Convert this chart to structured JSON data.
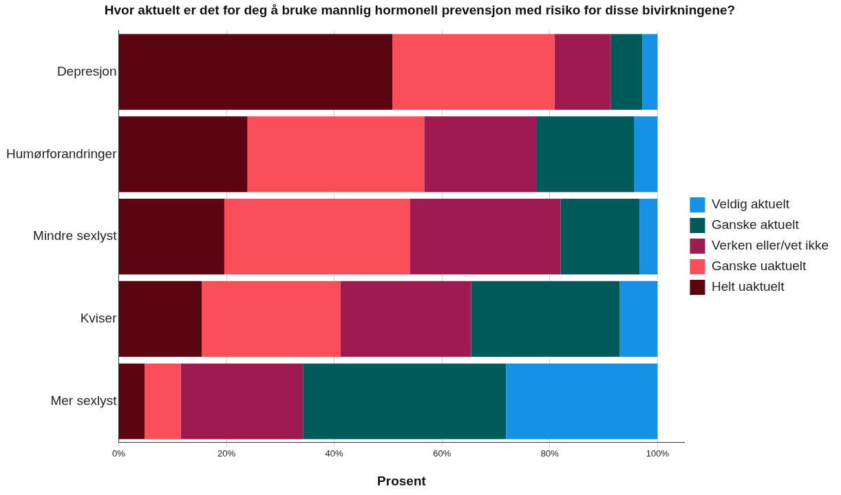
{
  "chart_data": {
    "type": "bar",
    "orientation": "horizontal",
    "stacked": true,
    "title": "Hvor aktuelt er det for deg å bruke mannlig hormonell prevensjon med risiko for disse bivirkningene?",
    "xlabel": "Prosent",
    "categories": [
      "Depresjon",
      "Humørforandringer",
      "Mindre sexlyst",
      "Kviser",
      "Mer sexlyst"
    ],
    "series": [
      {
        "name": "Helt uaktuelt",
        "color": "#5a0510",
        "values": [
          50.8,
          23.9,
          19.6,
          15.4,
          4.8
        ]
      },
      {
        "name": "Ganske uaktuelt",
        "color": "#fa4f58",
        "values": [
          30.1,
          32.8,
          34.5,
          25.8,
          6.7
        ]
      },
      {
        "name": "Verken eller/vet ikke",
        "color": "#9e1a4f",
        "values": [
          10.4,
          20.9,
          27.9,
          24.2,
          22.7
        ]
      },
      {
        "name": "Ganske aktuelt",
        "color": "#005a5a",
        "values": [
          5.9,
          18.1,
          14.7,
          27.6,
          37.7
        ]
      },
      {
        "name": "Veldig aktuelt",
        "color": "#1591e6",
        "values": [
          2.8,
          4.3,
          3.3,
          7.0,
          28.1
        ]
      }
    ],
    "xlim": [
      0,
      105
    ],
    "xticks": [
      {
        "value": 0,
        "label": "0%"
      },
      {
        "value": 20,
        "label": "20%"
      },
      {
        "value": 40,
        "label": "40%"
      },
      {
        "value": 60,
        "label": "60%"
      },
      {
        "value": 80,
        "label": "80%"
      },
      {
        "value": 100,
        "label": "100%"
      }
    ],
    "grid": "x",
    "legend": "right"
  }
}
